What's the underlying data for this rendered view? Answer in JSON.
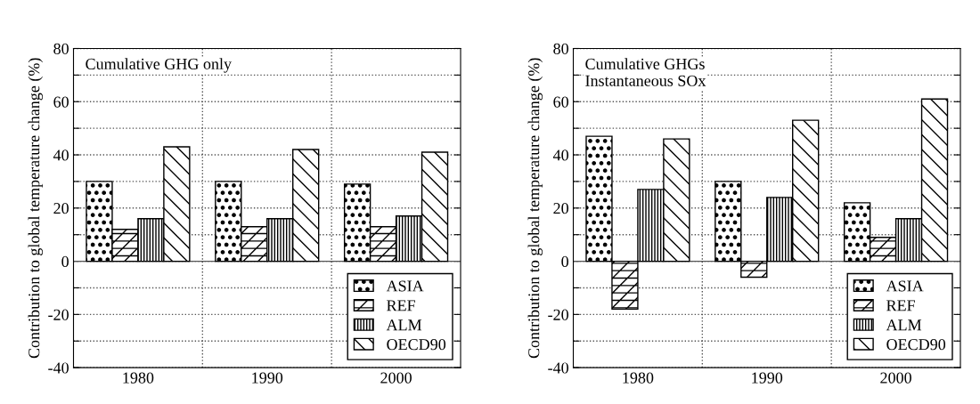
{
  "chart_data": [
    {
      "type": "bar",
      "title": "Cumulative GHG only",
      "ylabel": "Contribution to global temperature change (%)",
      "categories": [
        "1980",
        "1990",
        "2000"
      ],
      "series": [
        {
          "name": "ASIA",
          "color": "#000000",
          "values": [
            30,
            30,
            29
          ]
        },
        {
          "name": "REF",
          "color": "#000000",
          "values": [
            12,
            13,
            13
          ]
        },
        {
          "name": "ALM",
          "color": "#000000",
          "values": [
            16,
            16,
            17
          ]
        },
        {
          "name": "OECD90",
          "color": "#000000",
          "values": [
            43,
            42,
            41
          ]
        }
      ],
      "ylim": [
        -40,
        80
      ],
      "yticks": [
        -40,
        {
          "value": -30,
          "label": null
        },
        -20,
        {
          "value": -10,
          "label": null
        },
        0,
        {
          "value": 10,
          "label": null
        },
        20,
        {
          "value": 30,
          "label": null
        },
        40,
        {
          "value": 50,
          "label": null
        },
        60,
        {
          "value": 70,
          "label": null
        },
        80
      ],
      "grid": true,
      "legend": "bottom right"
    },
    {
      "type": "bar",
      "title": "Cumulative GHGs\nInstantaneous SOx",
      "ylabel": "Contribution to global temperature change (%)",
      "categories": [
        "1980",
        "1990",
        "2000"
      ],
      "series": [
        {
          "name": "ASIA",
          "color": "#000000",
          "values": [
            47,
            30,
            22
          ]
        },
        {
          "name": "REF",
          "color": "#000000",
          "values": [
            -18,
            -6,
            9
          ]
        },
        {
          "name": "ALM",
          "color": "#000000",
          "values": [
            27,
            24,
            16
          ]
        },
        {
          "name": "OECD90",
          "color": "#000000",
          "values": [
            46,
            53,
            61
          ]
        }
      ],
      "ylim": [
        -40,
        80
      ],
      "yticks": [
        -40,
        {
          "value": -30,
          "label": null
        },
        -20,
        {
          "value": -10,
          "label": null
        },
        0,
        {
          "value": 10,
          "label": null
        },
        20,
        {
          "value": 30,
          "label": null
        },
        40,
        {
          "value": 50,
          "label": null
        },
        60,
        {
          "value": 70,
          "label": null
        },
        80
      ],
      "grid": true,
      "legend": "bottom right"
    }
  ]
}
